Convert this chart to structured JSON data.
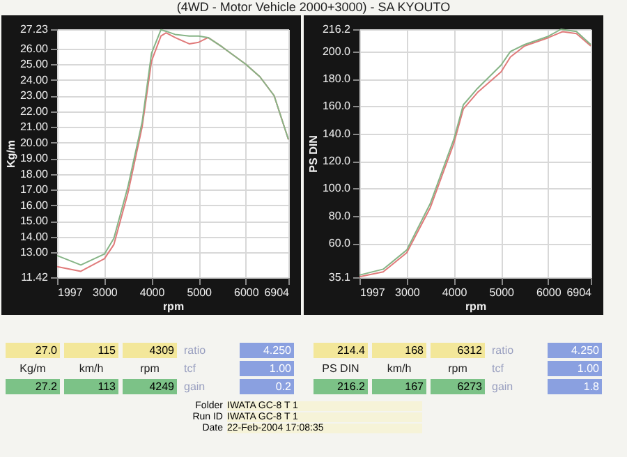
{
  "chart_data": [
    {
      "type": "line",
      "title": "(4WD - Motor Vehicle 2000+3000) - SA KYOUTO",
      "xlabel": "rpm",
      "ylabel": "Kg/m",
      "x": [
        1997,
        2500,
        3000,
        3200,
        3500,
        3800,
        4000,
        4200,
        4309,
        4500,
        4800,
        5000,
        5200,
        5500,
        6000,
        6300,
        6600,
        6904
      ],
      "series": [
        {
          "color": "#e07a7a",
          "values": [
            12.1,
            11.8,
            12.6,
            13.5,
            16.8,
            21.0,
            25.2,
            26.8,
            27.0,
            26.7,
            26.3,
            26.4,
            26.7,
            26.1,
            25.0,
            24.2,
            23.0,
            20.2
          ]
        },
        {
          "color": "#86b486",
          "values": [
            12.8,
            12.2,
            12.9,
            13.9,
            17.2,
            21.3,
            25.7,
            27.2,
            27.1,
            26.9,
            26.8,
            26.8,
            26.7,
            26.1,
            25.0,
            24.2,
            23.0,
            20.2
          ]
        }
      ],
      "xlim": [
        1997,
        6904
      ],
      "xticks": [
        1997,
        3000,
        4000,
        5000,
        6000,
        6904
      ],
      "ylim": [
        11.42,
        27.23
      ],
      "yticks": [
        11.42,
        {
          "value": 13,
          "label": "13.00"
        },
        {
          "value": 14,
          "label": "14.00"
        },
        {
          "value": 15,
          "label": "15.00"
        },
        {
          "value": 16,
          "label": "16.00"
        },
        {
          "value": 17,
          "label": "17.00"
        },
        {
          "value": 18,
          "label": "18.00"
        },
        {
          "value": 19,
          "label": "19.00"
        },
        {
          "value": 20,
          "label": "20.00"
        },
        {
          "value": 21,
          "label": "21.00"
        },
        {
          "value": 22,
          "label": "22.00"
        },
        {
          "value": 23,
          "label": "23.00"
        },
        {
          "value": 24,
          "label": "24.00"
        },
        {
          "value": 25,
          "label": "25.00"
        },
        {
          "value": 26,
          "label": "26.00"
        },
        27.23
      ],
      "grid": true,
      "legend": false
    },
    {
      "type": "line",
      "xlabel": "rpm",
      "ylabel": "PS DIN",
      "x": [
        1997,
        2500,
        3000,
        3500,
        4000,
        4200,
        4500,
        5000,
        5200,
        5500,
        6000,
        6273,
        6312,
        6600,
        6904
      ],
      "series": [
        {
          "color": "#e07a7a",
          "values": [
            35.5,
            39,
            53,
            86,
            133,
            158,
            170,
            185,
            196,
            204,
            210,
            214,
            214.4,
            213,
            204
          ]
        },
        {
          "color": "#86b486",
          "values": [
            36.7,
            41,
            55,
            89,
            136,
            161,
            173,
            190,
            200,
            205,
            211,
            216.2,
            216,
            214.6,
            205
          ]
        }
      ],
      "xlim": [
        1997,
        6904
      ],
      "xticks": [
        1997,
        3000,
        4000,
        5000,
        6000,
        6904
      ],
      "ylim": [
        35.1,
        216.2
      ],
      "yticks": [
        35.1,
        {
          "value": 60,
          "label": "60.0"
        },
        {
          "value": 80,
          "label": "80.0"
        },
        {
          "value": 100,
          "label": "100.0"
        },
        {
          "value": 120,
          "label": "120.0"
        },
        {
          "value": 140,
          "label": "140.0"
        },
        {
          "value": 160,
          "label": "160.0"
        },
        {
          "value": 180,
          "label": "180.0"
        },
        {
          "value": 200,
          "label": "200.0"
        },
        216.2
      ],
      "grid": true,
      "legend": false
    },
    {
      "type": "other",
      "annotations": [
        "27.0",
        "115",
        "4309",
        "ratio",
        "4.250",
        "Kg/m",
        "km/h",
        "rpm",
        "tcf",
        "1.00",
        "27.2",
        "113",
        "4249",
        "gain",
        "0.2",
        "214.4",
        "168",
        "6312",
        "ratio",
        "4.250",
        "PS DIN",
        "km/h",
        "rpm",
        "tcf",
        "1.00",
        "216.2",
        "167",
        "6273",
        "gain",
        "1.8",
        "Folder",
        "IWATA GC-8 T 1",
        "Run ID",
        "IWATA GC-8 T 1",
        "Date",
        "22-Feb-2004  17:08:35"
      ]
    }
  ]
}
